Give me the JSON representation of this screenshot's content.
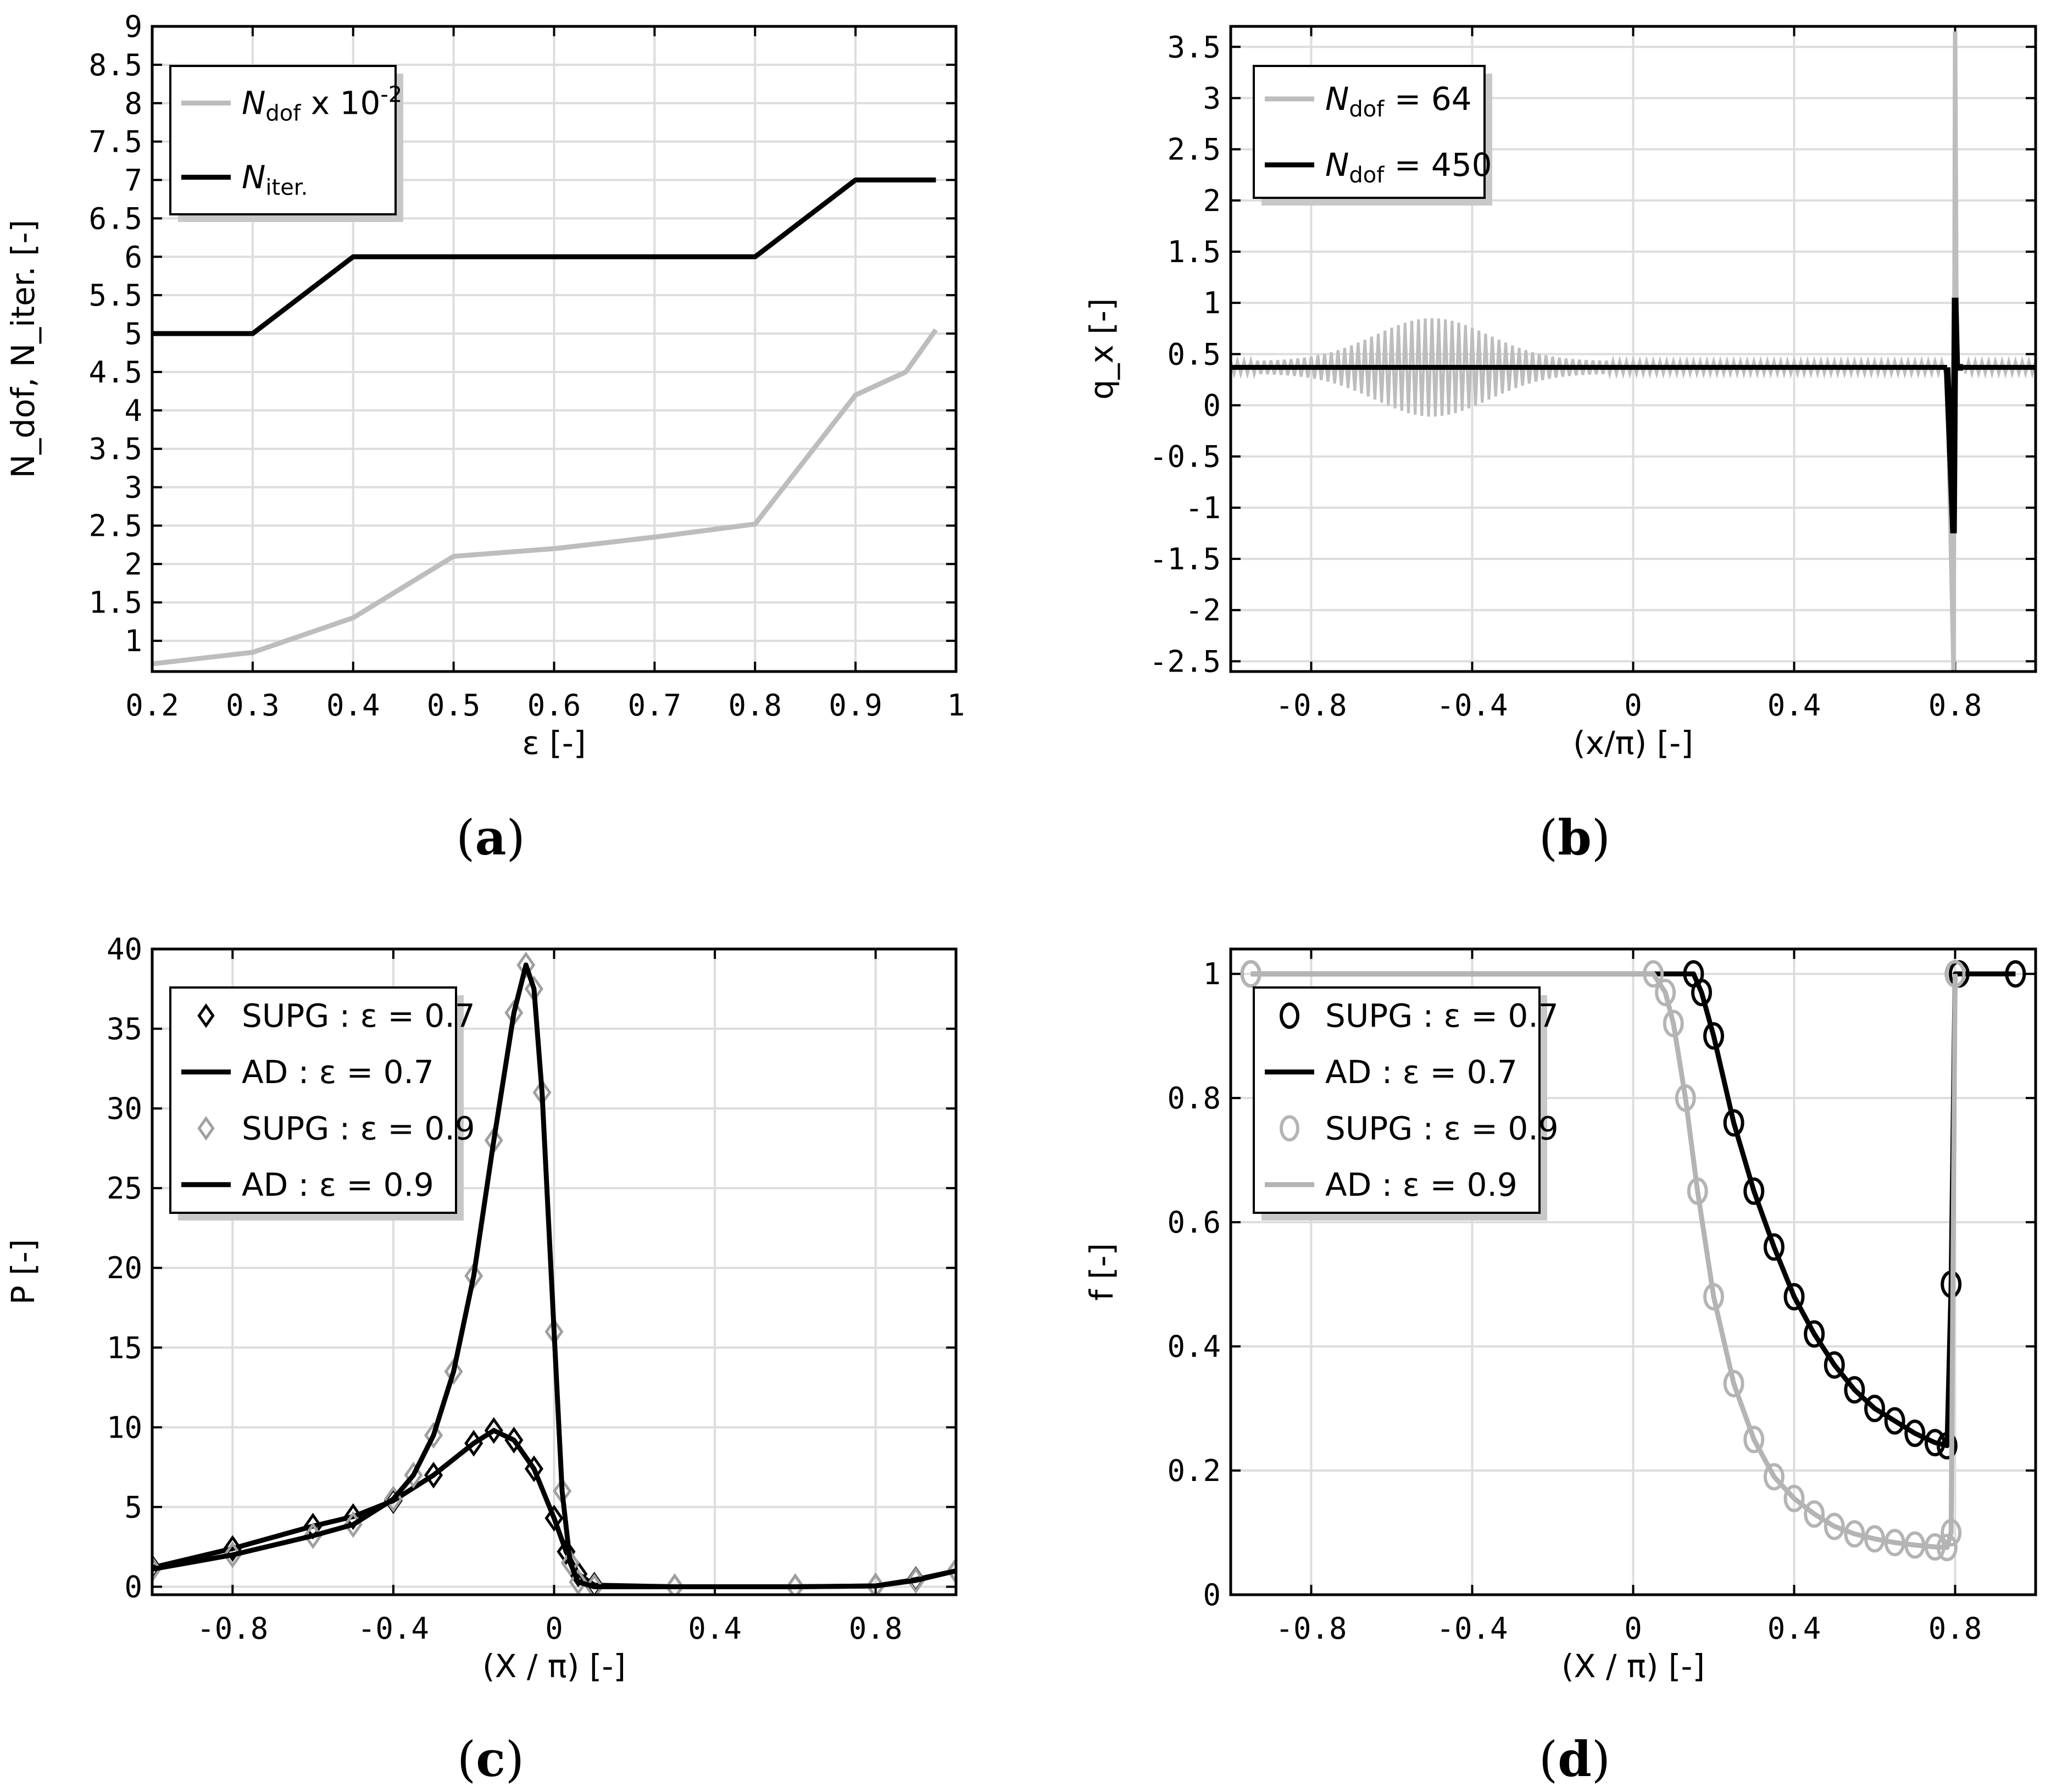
{
  "chart_data": [
    {
      "panel": "a",
      "caption": "a",
      "type": "line",
      "xlabel": "ε [-]",
      "ylabel": "N_dof, N_iter. [-]",
      "xlim": [
        0.2,
        1.0
      ],
      "ylim": [
        0.6,
        9.0
      ],
      "xticks": [
        0.2,
        0.3,
        0.4,
        0.5,
        0.6,
        0.7,
        0.8,
        0.9,
        1
      ],
      "yticks": [
        1,
        1.5,
        2,
        2.5,
        3,
        3.5,
        4,
        4.5,
        5,
        5.5,
        6,
        6.5,
        7,
        7.5,
        8,
        8.5,
        9
      ],
      "grid": true,
      "legend_position": "top-left",
      "series": [
        {
          "name": "N_dof x 10^-2",
          "color": "#bdbdbd",
          "x": [
            0.2,
            0.3,
            0.4,
            0.5,
            0.6,
            0.7,
            0.8,
            0.9,
            0.95,
            0.98
          ],
          "values": [
            0.7,
            0.85,
            1.3,
            2.1,
            2.2,
            2.35,
            2.52,
            4.2,
            4.5,
            5.05
          ]
        },
        {
          "name": "N_iter.",
          "color": "#000000",
          "x": [
            0.2,
            0.3,
            0.4,
            0.5,
            0.6,
            0.7,
            0.8,
            0.9,
            0.98
          ],
          "values": [
            5,
            5,
            6,
            6,
            6,
            6,
            6,
            7,
            7
          ]
        }
      ],
      "legend": [
        {
          "main": "N",
          "sub": "dof",
          "rest": " x 10",
          "sup": "-2"
        },
        {
          "main": "N",
          "sub": "iter.",
          "rest": "",
          "sup": ""
        }
      ]
    },
    {
      "panel": "b",
      "caption": "b",
      "type": "line",
      "xlabel": "(x/π) [-]",
      "ylabel": "q_x [-]",
      "xlim": [
        -1.0,
        1.0
      ],
      "ylim": [
        -2.6,
        3.7
      ],
      "xticks": [
        -0.8,
        -0.4,
        0,
        0.4,
        0.8
      ],
      "yticks": [
        -2.5,
        -2,
        -1.5,
        -1,
        -0.5,
        0,
        0.5,
        1,
        1.5,
        2,
        2.5,
        3,
        3.5
      ],
      "grid": true,
      "legend_position": "top-left",
      "series": [
        {
          "name": "N_dof = 64",
          "color": "#bdbdbd",
          "baseline": 0.37,
          "oscillation_envelope_peak": 0.42,
          "oscillation_center": -0.5,
          "spike_x": 0.8,
          "spike_max": 3.65,
          "spike_min": -2.6
        },
        {
          "name": "N_dof = 450",
          "color": "#000000",
          "baseline": 0.37,
          "spike_x": 0.8,
          "spike_max": 1.05,
          "spike_min": -1.25
        }
      ],
      "legend": [
        {
          "main": "N",
          "sub": "dof",
          "rest": " = 64"
        },
        {
          "main": "N",
          "sub": "dof",
          "rest": " = 450"
        }
      ]
    },
    {
      "panel": "c",
      "caption": "c",
      "type": "line",
      "xlabel": "(X / π)  [-]",
      "ylabel": "P [-]",
      "xlim": [
        -1.0,
        1.0
      ],
      "ylim": [
        -0.5,
        40
      ],
      "xticks": [
        -0.8,
        -0.4,
        0,
        0.4,
        0.8
      ],
      "yticks": [
        0,
        5,
        10,
        15,
        20,
        25,
        30,
        35,
        40
      ],
      "grid": true,
      "legend_position": "top-left",
      "series": [
        {
          "name": "SUPG : ε = 0.7",
          "marker": "diamond",
          "color": "#000000",
          "x": [
            -1.0,
            -0.8,
            -0.6,
            -0.5,
            -0.4,
            -0.3,
            -0.2,
            -0.15,
            -0.1,
            -0.05,
            0.0,
            0.03,
            0.06,
            0.1,
            0.3,
            0.6,
            0.8,
            0.9,
            1.0
          ],
          "values": [
            1.2,
            2.4,
            3.8,
            4.4,
            5.4,
            7.0,
            9.0,
            9.8,
            9.2,
            7.4,
            4.3,
            2.2,
            0.8,
            0.1,
            0.0,
            0.0,
            0.05,
            0.45,
            1.0
          ]
        },
        {
          "name": "AD : ε = 0.7",
          "color": "#000000",
          "x": [
            -1.0,
            -0.8,
            -0.6,
            -0.5,
            -0.4,
            -0.3,
            -0.2,
            -0.15,
            -0.1,
            -0.05,
            0.0,
            0.03,
            0.06,
            0.1,
            0.3,
            0.6,
            0.8,
            0.9,
            1.0
          ],
          "values": [
            1.2,
            2.4,
            3.8,
            4.4,
            5.4,
            7.0,
            9.0,
            9.8,
            9.2,
            7.4,
            4.3,
            2.2,
            0.8,
            0.1,
            0.0,
            0.0,
            0.05,
            0.45,
            1.0
          ]
        },
        {
          "name": "SUPG : ε = 0.9",
          "marker": "diamond",
          "color": "#a0a0a0",
          "x": [
            -1.0,
            -0.8,
            -0.6,
            -0.5,
            -0.4,
            -0.35,
            -0.3,
            -0.25,
            -0.2,
            -0.15,
            -0.1,
            -0.07,
            -0.05,
            -0.03,
            0.0,
            0.02,
            0.04,
            0.06,
            0.1,
            0.3,
            0.6,
            0.8,
            0.9,
            1.0
          ],
          "values": [
            1.1,
            2.0,
            3.2,
            3.9,
            5.5,
            7.0,
            9.5,
            13.5,
            19.5,
            28.0,
            36.0,
            39.0,
            37.5,
            31.0,
            16.0,
            6.0,
            1.5,
            0.3,
            0.0,
            0.0,
            0.0,
            0.05,
            0.4,
            1.0
          ]
        },
        {
          "name": "AD : ε = 0.9",
          "color": "#000000",
          "x": [
            -1.0,
            -0.8,
            -0.6,
            -0.5,
            -0.4,
            -0.35,
            -0.3,
            -0.25,
            -0.2,
            -0.15,
            -0.1,
            -0.07,
            -0.05,
            -0.03,
            0.0,
            0.02,
            0.04,
            0.06,
            0.1,
            0.3,
            0.6,
            0.8,
            0.9,
            1.0
          ],
          "values": [
            1.1,
            2.0,
            3.2,
            3.9,
            5.5,
            7.0,
            9.5,
            13.5,
            19.5,
            28.0,
            36.0,
            39.0,
            37.5,
            31.0,
            16.0,
            6.0,
            1.5,
            0.3,
            0.0,
            0.0,
            0.0,
            0.05,
            0.4,
            1.0
          ]
        }
      ],
      "legend": [
        {
          "label": "SUPG : ε = 0.7",
          "marker": "diamond",
          "color": "#000000"
        },
        {
          "label": "AD : ε = 0.7",
          "marker": "line",
          "color": "#000000"
        },
        {
          "label": "SUPG : ε = 0.9",
          "marker": "diamond",
          "color": "#a0a0a0"
        },
        {
          "label": "AD : ε = 0.9",
          "marker": "line",
          "color": "#000000"
        }
      ]
    },
    {
      "panel": "d",
      "caption": "d",
      "type": "line",
      "xlabel": "(X / π)  [-]",
      "ylabel": "f [-]",
      "xlim": [
        -1.0,
        1.0
      ],
      "ylim": [
        0,
        1.04
      ],
      "xticks": [
        -0.8,
        -0.4,
        0,
        0.4,
        0.8
      ],
      "yticks": [
        0,
        0.2,
        0.4,
        0.6,
        0.8,
        1
      ],
      "grid": true,
      "legend_position": "top-left",
      "series": [
        {
          "name": "SUPG : ε = 0.7",
          "marker": "circle",
          "color": "#000000",
          "x": [
            -0.95,
            0.15,
            0.17,
            0.2,
            0.25,
            0.3,
            0.35,
            0.4,
            0.45,
            0.5,
            0.55,
            0.6,
            0.65,
            0.7,
            0.75,
            0.78,
            0.79,
            0.8,
            0.81,
            0.95
          ],
          "values": [
            1.0,
            1.0,
            0.97,
            0.9,
            0.76,
            0.65,
            0.56,
            0.48,
            0.42,
            0.37,
            0.33,
            0.3,
            0.28,
            0.26,
            0.245,
            0.24,
            0.5,
            1.0,
            1.0,
            1.0
          ]
        },
        {
          "name": "AD : ε = 0.7",
          "color": "#000000",
          "x": [
            -0.95,
            0.15,
            0.17,
            0.2,
            0.25,
            0.3,
            0.35,
            0.4,
            0.45,
            0.5,
            0.55,
            0.6,
            0.65,
            0.7,
            0.75,
            0.78,
            0.79,
            0.8,
            0.81,
            0.95
          ],
          "values": [
            1.0,
            1.0,
            0.97,
            0.9,
            0.76,
            0.65,
            0.56,
            0.48,
            0.42,
            0.37,
            0.33,
            0.3,
            0.28,
            0.26,
            0.245,
            0.24,
            0.5,
            1.0,
            1.0,
            1.0
          ]
        },
        {
          "name": "SUPG : ε = 0.9",
          "marker": "circle",
          "color": "#b4b4b4",
          "x": [
            -0.95,
            0.05,
            0.08,
            0.1,
            0.13,
            0.16,
            0.2,
            0.25,
            0.3,
            0.35,
            0.4,
            0.45,
            0.5,
            0.55,
            0.6,
            0.65,
            0.7,
            0.75,
            0.78,
            0.79,
            0.8
          ],
          "values": [
            1.0,
            1.0,
            0.97,
            0.92,
            0.8,
            0.65,
            0.48,
            0.34,
            0.25,
            0.19,
            0.155,
            0.13,
            0.11,
            0.098,
            0.09,
            0.084,
            0.08,
            0.077,
            0.076,
            0.1,
            1.0
          ]
        },
        {
          "name": "AD : ε = 0.9",
          "color": "#b4b4b4",
          "x": [
            -0.95,
            0.05,
            0.08,
            0.1,
            0.13,
            0.16,
            0.2,
            0.25,
            0.3,
            0.35,
            0.4,
            0.45,
            0.5,
            0.55,
            0.6,
            0.65,
            0.7,
            0.75,
            0.78,
            0.79,
            0.8
          ],
          "values": [
            1.0,
            1.0,
            0.97,
            0.92,
            0.8,
            0.65,
            0.48,
            0.34,
            0.25,
            0.19,
            0.155,
            0.13,
            0.11,
            0.098,
            0.09,
            0.084,
            0.08,
            0.077,
            0.076,
            0.1,
            1.0
          ]
        }
      ],
      "legend": [
        {
          "label": "SUPG : ε = 0.7",
          "marker": "circle",
          "color": "#000000"
        },
        {
          "label": "AD : ε = 0.7",
          "marker": "line",
          "color": "#000000"
        },
        {
          "label": "SUPG : ε = 0.9",
          "marker": "circle",
          "color": "#b4b4b4"
        },
        {
          "label": "AD : ε = 0.9",
          "marker": "line",
          "color": "#b4b4b4"
        }
      ]
    }
  ],
  "colors": {
    "black_series": "#000000",
    "gray_series": "#bdbdbd",
    "grid": "#dddddd",
    "legend_shadow": "#c8c8c8"
  }
}
